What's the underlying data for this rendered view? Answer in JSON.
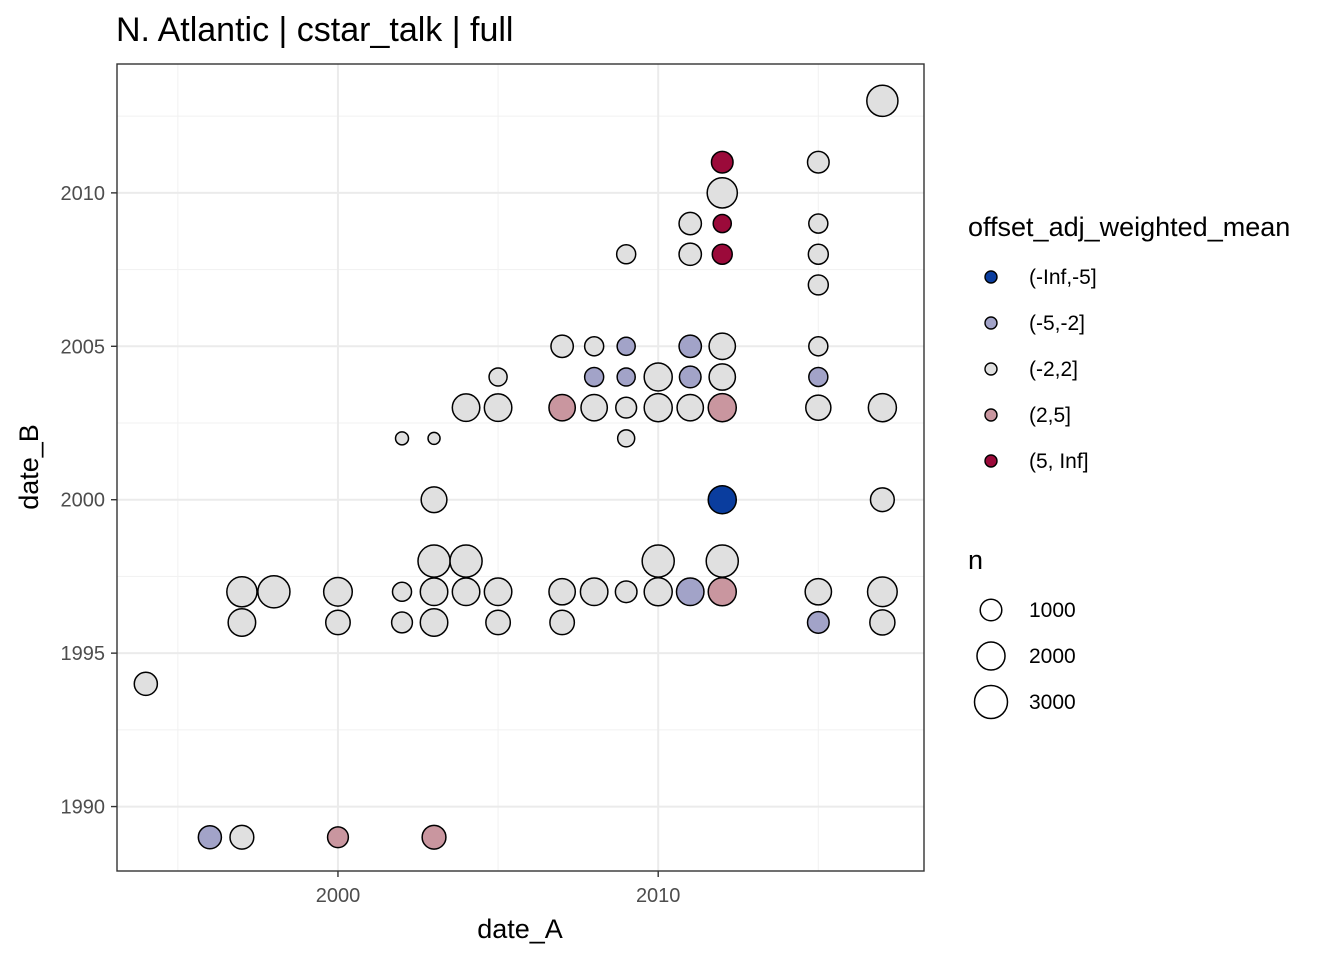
{
  "chart_data": {
    "type": "scatter",
    "title": "N. Atlantic | cstar_talk | full",
    "xlabel": "date_A",
    "ylabel": "date_B",
    "xlim": [
      1993.1,
      2018.3
    ],
    "ylim": [
      1987.9,
      2014.2
    ],
    "x_ticks": [
      2000,
      2010
    ],
    "y_ticks": [
      1990,
      1995,
      2000,
      2005,
      2010
    ],
    "grid": true,
    "legend_position": "right",
    "color_legend": {
      "title": "offset_adj_weighted_mean",
      "entries": [
        {
          "label": "(-Inf,-5]",
          "color": "#0a3d9e"
        },
        {
          "label": "(-5,-2]",
          "color": "#a2a3c8"
        },
        {
          "label": "(-2,2]",
          "color": "#e0e0e0"
        },
        {
          "label": "(2,5]",
          "color": "#c9969f"
        },
        {
          "label": "(5, Inf]",
          "color": "#9b0a3a"
        }
      ]
    },
    "size_legend": {
      "title": "n",
      "entries": [
        {
          "label": "1000",
          "value": 1000
        },
        {
          "label": "2000",
          "value": 2000
        },
        {
          "label": "3000",
          "value": 3000
        }
      ]
    },
    "points": [
      {
        "x": 1994,
        "y": 1994,
        "n": 1200,
        "cat": "(-2,2]"
      },
      {
        "x": 1996,
        "y": 1989,
        "n": 1200,
        "cat": "(-5,-2]"
      },
      {
        "x": 1997,
        "y": 1989,
        "n": 1300,
        "cat": "(-2,2]"
      },
      {
        "x": 2000,
        "y": 1989,
        "n": 900,
        "cat": "(2,5]"
      },
      {
        "x": 2003,
        "y": 1989,
        "n": 1300,
        "cat": "(2,5]"
      },
      {
        "x": 1997,
        "y": 1996,
        "n": 1900,
        "cat": "(-2,2]"
      },
      {
        "x": 1997,
        "y": 1997,
        "n": 2400,
        "cat": "(-2,2]"
      },
      {
        "x": 1998,
        "y": 1997,
        "n": 2800,
        "cat": "(-2,2]"
      },
      {
        "x": 2000,
        "y": 1996,
        "n": 1400,
        "cat": "(-2,2]"
      },
      {
        "x": 2000,
        "y": 1997,
        "n": 2100,
        "cat": "(-2,2]"
      },
      {
        "x": 2002,
        "y": 1996,
        "n": 900,
        "cat": "(-2,2]"
      },
      {
        "x": 2002,
        "y": 1997,
        "n": 700,
        "cat": "(-2,2]"
      },
      {
        "x": 2002,
        "y": 2002,
        "n": 200,
        "cat": "(-2,2]"
      },
      {
        "x": 2003,
        "y": 1996,
        "n": 1900,
        "cat": "(-2,2]"
      },
      {
        "x": 2003,
        "y": 1997,
        "n": 1900,
        "cat": "(-2,2]"
      },
      {
        "x": 2003,
        "y": 1998,
        "n": 2800,
        "cat": "(-2,2]"
      },
      {
        "x": 2003,
        "y": 2000,
        "n": 1600,
        "cat": "(-2,2]"
      },
      {
        "x": 2003,
        "y": 2002,
        "n": 150,
        "cat": "(-2,2]"
      },
      {
        "x": 2004,
        "y": 1997,
        "n": 1900,
        "cat": "(-2,2]"
      },
      {
        "x": 2004,
        "y": 1998,
        "n": 2800,
        "cat": "(-2,2]"
      },
      {
        "x": 2004,
        "y": 2003,
        "n": 1900,
        "cat": "(-2,2]"
      },
      {
        "x": 2005,
        "y": 1996,
        "n": 1400,
        "cat": "(-2,2]"
      },
      {
        "x": 2005,
        "y": 1997,
        "n": 1900,
        "cat": "(-2,2]"
      },
      {
        "x": 2005,
        "y": 2003,
        "n": 1900,
        "cat": "(-2,2]"
      },
      {
        "x": 2005,
        "y": 2004,
        "n": 600,
        "cat": "(-2,2]"
      },
      {
        "x": 2007,
        "y": 1996,
        "n": 1400,
        "cat": "(-2,2]"
      },
      {
        "x": 2007,
        "y": 1997,
        "n": 1700,
        "cat": "(-2,2]"
      },
      {
        "x": 2007,
        "y": 2003,
        "n": 1700,
        "cat": "(2,5]"
      },
      {
        "x": 2007,
        "y": 2005,
        "n": 1100,
        "cat": "(-2,2]"
      },
      {
        "x": 2008,
        "y": 1997,
        "n": 1900,
        "cat": "(-2,2]"
      },
      {
        "x": 2008,
        "y": 2003,
        "n": 1700,
        "cat": "(-2,2]"
      },
      {
        "x": 2008,
        "y": 2004,
        "n": 700,
        "cat": "(-5,-2]"
      },
      {
        "x": 2008,
        "y": 2005,
        "n": 700,
        "cat": "(-2,2]"
      },
      {
        "x": 2009,
        "y": 1997,
        "n": 1000,
        "cat": "(-2,2]"
      },
      {
        "x": 2009,
        "y": 2002,
        "n": 500,
        "cat": "(-2,2]"
      },
      {
        "x": 2009,
        "y": 2003,
        "n": 900,
        "cat": "(-2,2]"
      },
      {
        "x": 2009,
        "y": 2004,
        "n": 600,
        "cat": "(-5,-2]"
      },
      {
        "x": 2009,
        "y": 2005,
        "n": 600,
        "cat": "(-5,-2]"
      },
      {
        "x": 2009,
        "y": 2008,
        "n": 700,
        "cat": "(-2,2]"
      },
      {
        "x": 2010,
        "y": 1997,
        "n": 2000,
        "cat": "(-2,2]"
      },
      {
        "x": 2010,
        "y": 1998,
        "n": 2800,
        "cat": "(-2,2]"
      },
      {
        "x": 2010,
        "y": 2003,
        "n": 2000,
        "cat": "(-2,2]"
      },
      {
        "x": 2010,
        "y": 2004,
        "n": 2000,
        "cat": "(-2,2]"
      },
      {
        "x": 2011,
        "y": 1997,
        "n": 1900,
        "cat": "(-5,-2]"
      },
      {
        "x": 2011,
        "y": 2003,
        "n": 1700,
        "cat": "(-2,2]"
      },
      {
        "x": 2011,
        "y": 2004,
        "n": 1000,
        "cat": "(-5,-2]"
      },
      {
        "x": 2011,
        "y": 2005,
        "n": 1100,
        "cat": "(-5,-2]"
      },
      {
        "x": 2011,
        "y": 2008,
        "n": 1100,
        "cat": "(-2,2]"
      },
      {
        "x": 2011,
        "y": 2009,
        "n": 1100,
        "cat": "(-2,2]"
      },
      {
        "x": 2012,
        "y": 1997,
        "n": 2000,
        "cat": "(2,5]"
      },
      {
        "x": 2012,
        "y": 1998,
        "n": 2800,
        "cat": "(-2,2]"
      },
      {
        "x": 2012,
        "y": 2000,
        "n": 2000,
        "cat": "(-Inf,-5]"
      },
      {
        "x": 2012,
        "y": 2003,
        "n": 2000,
        "cat": "(2,5]"
      },
      {
        "x": 2012,
        "y": 2004,
        "n": 1700,
        "cat": "(-2,2]"
      },
      {
        "x": 2012,
        "y": 2005,
        "n": 1700,
        "cat": "(-2,2]"
      },
      {
        "x": 2012,
        "y": 2008,
        "n": 800,
        "cat": "(5, Inf]"
      },
      {
        "x": 2012,
        "y": 2009,
        "n": 600,
        "cat": "(5, Inf]"
      },
      {
        "x": 2012,
        "y": 2010,
        "n": 2400,
        "cat": "(-2,2]"
      },
      {
        "x": 2012,
        "y": 2011,
        "n": 1000,
        "cat": "(5, Inf]"
      },
      {
        "x": 2015,
        "y": 1996,
        "n": 1000,
        "cat": "(-5,-2]"
      },
      {
        "x": 2015,
        "y": 1997,
        "n": 1700,
        "cat": "(-2,2]"
      },
      {
        "x": 2015,
        "y": 2003,
        "n": 1500,
        "cat": "(-2,2]"
      },
      {
        "x": 2015,
        "y": 2004,
        "n": 700,
        "cat": "(-5,-2]"
      },
      {
        "x": 2015,
        "y": 2005,
        "n": 700,
        "cat": "(-2,2]"
      },
      {
        "x": 2015,
        "y": 2007,
        "n": 800,
        "cat": "(-2,2]"
      },
      {
        "x": 2015,
        "y": 2008,
        "n": 800,
        "cat": "(-2,2]"
      },
      {
        "x": 2015,
        "y": 2009,
        "n": 700,
        "cat": "(-2,2]"
      },
      {
        "x": 2015,
        "y": 2011,
        "n": 1000,
        "cat": "(-2,2]"
      },
      {
        "x": 2017,
        "y": 1996,
        "n": 1500,
        "cat": "(-2,2]"
      },
      {
        "x": 2017,
        "y": 1997,
        "n": 2300,
        "cat": "(-2,2]"
      },
      {
        "x": 2017,
        "y": 2000,
        "n": 1300,
        "cat": "(-2,2]"
      },
      {
        "x": 2017,
        "y": 2003,
        "n": 2000,
        "cat": "(-2,2]"
      },
      {
        "x": 2017,
        "y": 2013,
        "n": 2600,
        "cat": "(-2,2]"
      }
    ]
  }
}
